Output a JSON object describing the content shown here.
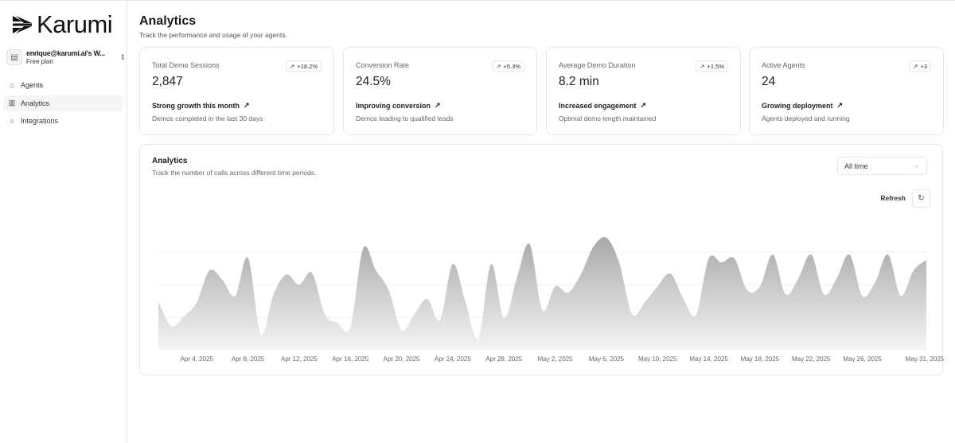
{
  "sidebar": {
    "logo_text": "Karumi",
    "workspace": {
      "name": "enrique@karumi.ai's W...",
      "plan": "Free plan"
    },
    "items": [
      {
        "label": "Agents",
        "icon": "bot-icon",
        "active": false
      },
      {
        "label": "Analytics",
        "icon": "bar-chart-icon",
        "active": true
      },
      {
        "label": "Integrations",
        "icon": "message-circle-icon",
        "active": false
      }
    ]
  },
  "header": {
    "title": "Analytics",
    "subtitle": "Track the performance and usage of your agents."
  },
  "cards": [
    {
      "label": "Total Demo Sessions",
      "value": "2,847",
      "badge": "+18.2%",
      "trend": "Strong growth this month",
      "desc": "Demos completed in the last 30 days"
    },
    {
      "label": "Conversion Rate",
      "value": "24.5%",
      "badge": "+5.3%",
      "trend": "Improving conversion",
      "desc": "Demos leading to qualified leads"
    },
    {
      "label": "Average Demo Duration",
      "value": "8.2 min",
      "badge": "+1.5%",
      "trend": "Increased engagement",
      "desc": "Optimal demo length maintained"
    },
    {
      "label": "Active Agents",
      "value": "24",
      "badge": "+3",
      "trend": "Growing deployment",
      "desc": "Agents deployed and running"
    }
  ],
  "chart_panel": {
    "title": "Analytics",
    "subtitle": "Track the number of calls across different time periods.",
    "range_select": "All time",
    "refresh_label": "Refresh"
  },
  "chart_data": {
    "type": "area",
    "x_start": "Apr 1, 2025",
    "x_end": "May 31, 2025",
    "tick_labels": [
      "Apr 4, 2025",
      "Apr 8, 2025",
      "Apr 12, 2025",
      "Apr 16, 2025",
      "Apr 20, 2025",
      "Apr 24, 2025",
      "Apr 28, 2025",
      "May 2, 2025",
      "May 6, 2025",
      "May 10, 2025",
      "May 14, 2025",
      "May 18, 2025",
      "May 22, 2025",
      "May 26, 2025",
      "May 31, 2025"
    ],
    "values": [
      61,
      30,
      42,
      60,
      100,
      88,
      68,
      116,
      20,
      70,
      95,
      82,
      97,
      45,
      34,
      29,
      128,
      100,
      75,
      25,
      45,
      64,
      38,
      108,
      60,
      15,
      108,
      40,
      90,
      133,
      50,
      80,
      72,
      95,
      130,
      141,
      110,
      45,
      60,
      80,
      96,
      65,
      44,
      115,
      110,
      115,
      75,
      80,
      120,
      70,
      90,
      120,
      70,
      90,
      120,
      68,
      85,
      120,
      68,
      100,
      113
    ],
    "ylim": [
      0,
      164
    ],
    "grid": true,
    "y_axis_labels": false,
    "fill_color_top": "#a8a8aa",
    "fill_color_bottom": "#f4f4f4"
  }
}
